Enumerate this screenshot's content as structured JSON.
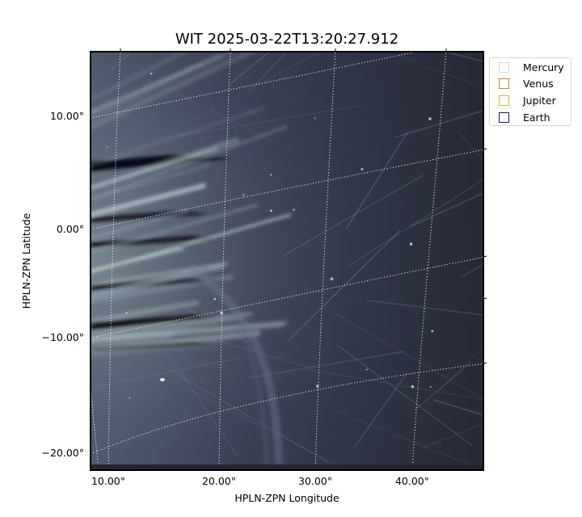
{
  "title": "WIT 2025-03-22T13:20:27.912",
  "xlabel": "HPLN-ZPN Longitude",
  "ylabel": "HPLN-ZPN Latitude",
  "x_ticks": [
    "10.00°",
    "20.00°",
    "30.00°",
    "40.00°"
  ],
  "y_ticks": [
    "10.00°",
    "0.00°",
    "−10.00°",
    "−20.00°"
  ],
  "legend": [
    {
      "label": "Mercury",
      "color": "#d9d9d9"
    },
    {
      "label": "Venus",
      "color": "#e07b39"
    },
    {
      "label": "Jupiter",
      "color": "#e6b422"
    },
    {
      "label": "Earth",
      "color": "#1a1a6e"
    }
  ],
  "image_colormap": "bone",
  "grid": "dotted white"
}
